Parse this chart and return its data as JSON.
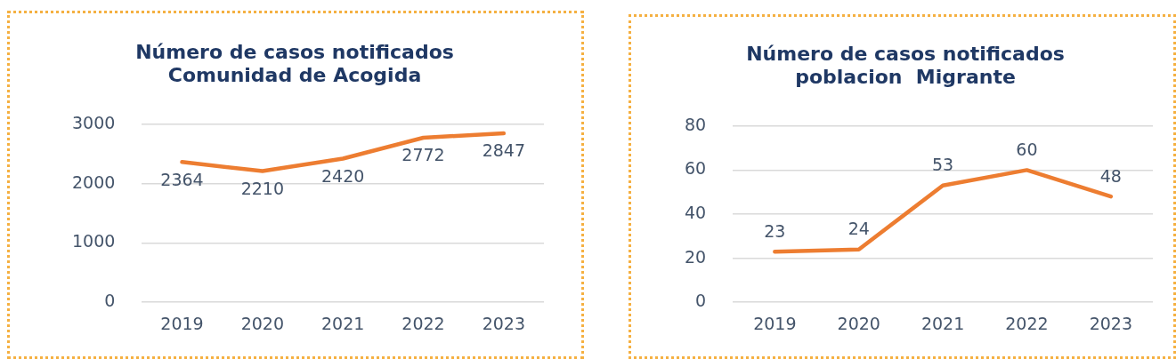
{
  "chart_data": [
    {
      "type": "line",
      "title": "Número de casos notificados\nComunidad de Acogida",
      "categories": [
        "2019",
        "2020",
        "2021",
        "2022",
        "2023"
      ],
      "series": [
        {
          "color": "#ed7d31",
          "values": [
            2364,
            2210,
            2420,
            2772,
            2847
          ]
        }
      ],
      "ylim": [
        0,
        3000
      ],
      "yticks": [
        0,
        1000,
        2000,
        3000
      ],
      "grid": "y",
      "legend": false,
      "data_labels": true,
      "marker": "none"
    },
    {
      "type": "line",
      "title": "Número de casos notificados\npoblacion  Migrante",
      "categories": [
        "2019",
        "2020",
        "2021",
        "2022",
        "2023"
      ],
      "series": [
        {
          "color": "#ed7d31",
          "values": [
            23,
            24,
            53,
            60,
            48
          ]
        }
      ],
      "ylim": [
        0,
        80
      ],
      "yticks": [
        0,
        20,
        40,
        60,
        80
      ],
      "grid": "y",
      "legend": false,
      "data_labels": true,
      "marker": "none"
    }
  ]
}
